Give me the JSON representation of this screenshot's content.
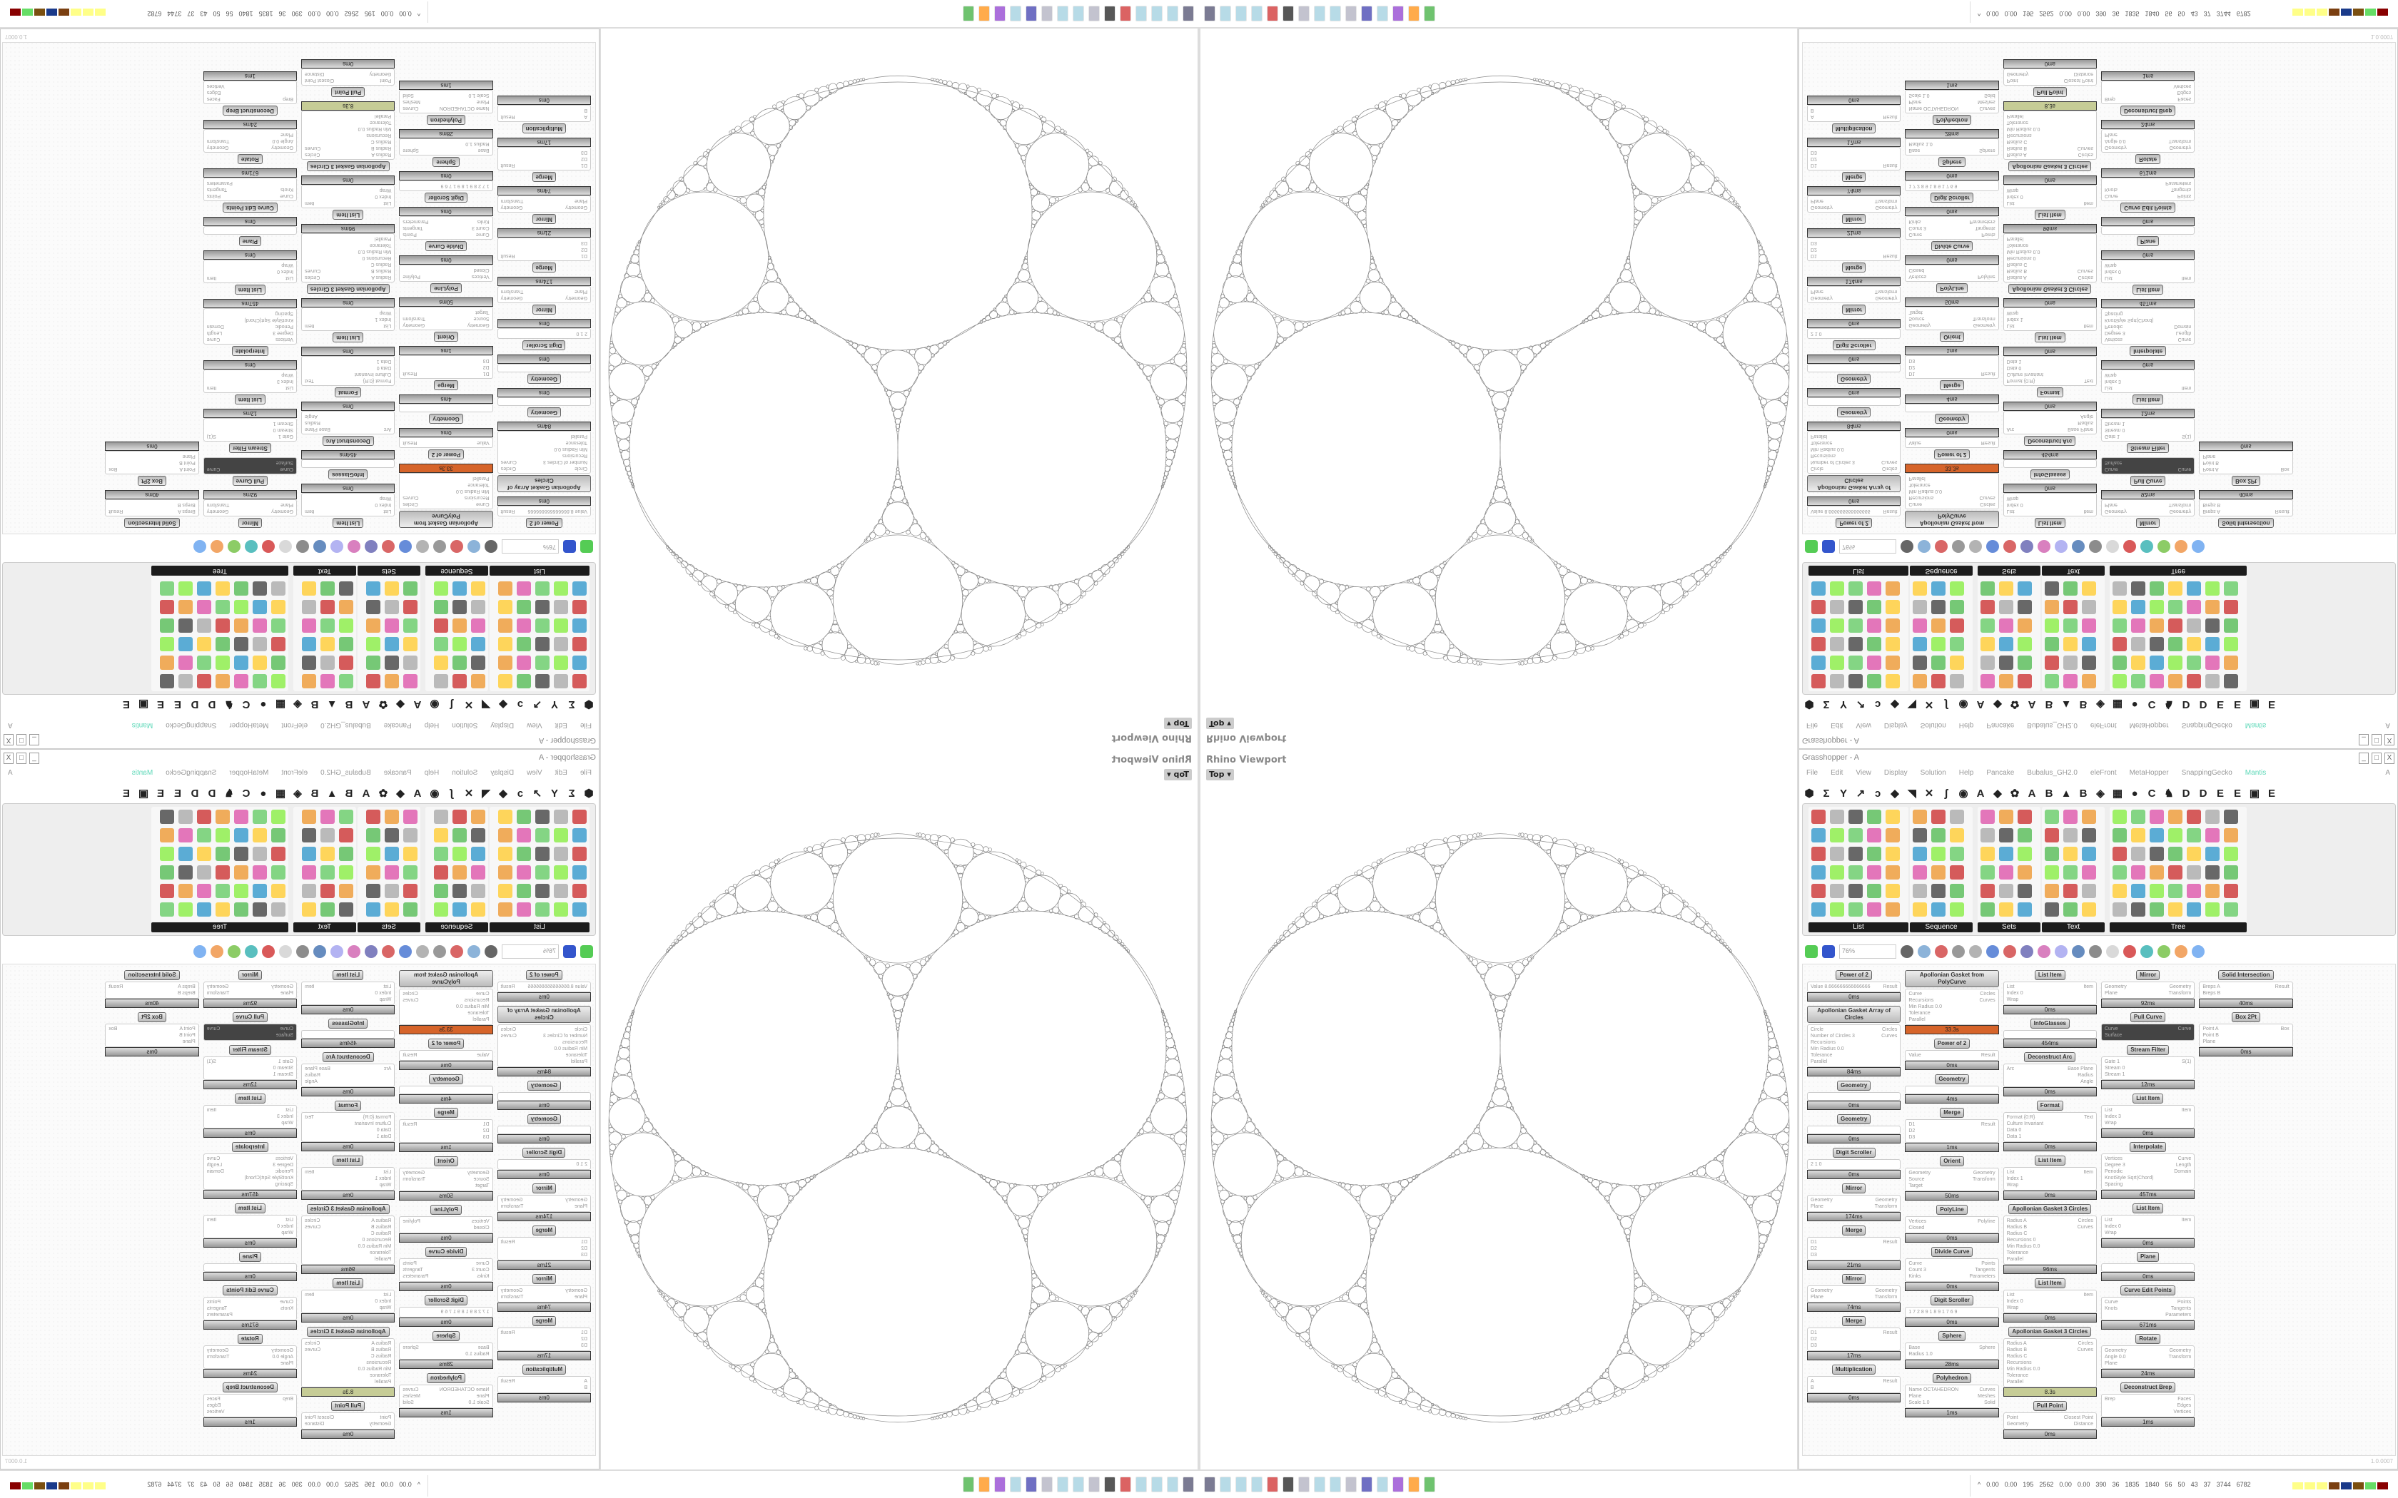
{
  "window": {
    "title": "Grasshopper - A",
    "buttons": [
      "_",
      "□",
      "X"
    ]
  },
  "menu": {
    "items": [
      "File",
      "Edit",
      "View",
      "Display",
      "Solution",
      "Help",
      "Pancake",
      "Bubalus_GH2.0",
      "eleFront",
      "MetaHopper",
      "SnappingGecko",
      "Mantis"
    ],
    "right": "A"
  },
  "tabs": [
    "⬢",
    "Σ",
    "Y",
    "↗",
    "ↄ",
    "◆",
    "◥",
    "✕",
    "ʃ",
    "◉",
    "A",
    "◆",
    "✿",
    "A",
    "B",
    "▲",
    "B",
    "◈",
    "▦",
    "●",
    "C",
    "♞",
    "D",
    "D",
    "E",
    "E",
    "▣",
    "E"
  ],
  "ribbon": {
    "groups": [
      "List",
      "Sequence",
      "Sets",
      "Text",
      "Tree"
    ]
  },
  "toolbar": {
    "zoom": "76%"
  },
  "viewport": {
    "label": "Rhino Viewport",
    "view": "Top"
  },
  "status": {
    "version": "1.0.0007"
  },
  "tray": {
    "values": [
      "0.00",
      "0.00",
      "195",
      "2562",
      "0.00",
      "0.00",
      "390",
      "36",
      "1835",
      "1840",
      "56",
      "50",
      "43",
      "37",
      "3744",
      "6782"
    ],
    "bar_colors": [
      "#ffff88",
      "#ffff88",
      "#ffff88",
      "#7a3f10",
      "#1a3a8a",
      "#7a4f10",
      "#66dd66",
      "#880000"
    ]
  },
  "components": [
    {
      "title": "Power of 2",
      "in": [
        "Value 8.666666666666666"
      ],
      "out": [
        "Result"
      ],
      "time": "0ms"
    },
    {
      "title": "Apollonian Gasket Array of Circles",
      "in": [
        "Circle",
        "Number of Circles 3",
        "Recursions",
        "Min Radius 0.0",
        "Tolerance",
        "Parallel"
      ],
      "out": [
        "Circles",
        "Curves"
      ],
      "time": "84ms"
    },
    {
      "title": "Geometry",
      "in": [],
      "out": [],
      "time": "0ms"
    },
    {
      "title": "Geometry",
      "in": [],
      "out": [],
      "time": "0ms"
    },
    {
      "title": "Digit Scroller",
      "in": [
        "2 1 0"
      ],
      "out": [],
      "time": "0ms"
    },
    {
      "title": "Mirror",
      "in": [
        "Geometry",
        "Plane"
      ],
      "out": [
        "Geometry",
        "Transform"
      ],
      "time": "174ms"
    },
    {
      "title": "Merge",
      "in": [
        "D1",
        "D2",
        "D3"
      ],
      "out": [
        "Result"
      ],
      "time": "21ms"
    },
    {
      "title": "Mirror",
      "in": [
        "Geometry",
        "Plane"
      ],
      "out": [
        "Geometry",
        "Transform"
      ],
      "time": "74ms"
    },
    {
      "title": "Merge",
      "in": [
        "D1",
        "D2",
        "D3"
      ],
      "out": [
        "Result"
      ],
      "time": "17ms"
    },
    {
      "title": "Multiplication",
      "in": [
        "A",
        "B"
      ],
      "out": [
        "Result"
      ],
      "time": "0ms"
    },
    {
      "title": "Apollonian Gasket from PolyCurve",
      "in": [
        "Curve",
        "Recursions",
        "Min Radius 0.0",
        "Tolerance",
        "Parallel"
      ],
      "out": [
        "Circles",
        "Curves"
      ],
      "time": "33.3s",
      "state": "orange"
    },
    {
      "title": "Power of 2",
      "in": [
        "Value"
      ],
      "out": [
        "Result"
      ],
      "time": "0ms"
    },
    {
      "title": "Geometry",
      "in": [],
      "out": [],
      "time": "4ms"
    },
    {
      "title": "Merge",
      "in": [
        "D1",
        "D2",
        "D3"
      ],
      "out": [
        "Result"
      ],
      "time": "1ms"
    },
    {
      "title": "Orient",
      "in": [
        "Geometry",
        "Source",
        "Target"
      ],
      "out": [
        "Geometry",
        "Transform"
      ],
      "time": "50ms"
    },
    {
      "title": "PolyLine",
      "in": [
        "Vertices",
        "Closed"
      ],
      "out": [
        "Polyline"
      ],
      "time": "0ms"
    },
    {
      "title": "Divide Curve",
      "in": [
        "Curve",
        "Count 3",
        "Kinks"
      ],
      "out": [
        "Points",
        "Tangents",
        "Parameters"
      ],
      "time": "0ms"
    },
    {
      "title": "Digit Scroller",
      "in": [
        "1 7 2 8 9 1 8 9 1 7 6 9"
      ],
      "out": [],
      "time": "0ms"
    },
    {
      "title": "Sphere",
      "in": [
        "Base",
        "Radius 1.0"
      ],
      "out": [
        "Sphere"
      ],
      "time": "28ms"
    },
    {
      "title": "Polyhedron",
      "in": [
        "Name OCTAHEDRON",
        "Plane",
        "Scale 1.0"
      ],
      "out": [
        "Curves",
        "Meshes",
        "Solid"
      ],
      "time": "1ms"
    },
    {
      "title": "List Item",
      "in": [
        "List",
        "Index 0",
        "Wrap"
      ],
      "out": [
        "Item"
      ],
      "time": "0ms"
    },
    {
      "title": "InfoGlasses",
      "in": [],
      "out": [],
      "time": "454ms"
    },
    {
      "title": "Deconstruct Arc",
      "in": [
        "Arc"
      ],
      "out": [
        "Base Plane",
        "Radius",
        "Angle"
      ],
      "time": "0ms"
    },
    {
      "title": "Format",
      "in": [
        "Format {0:R}",
        "Culture Invariant",
        "Data 0",
        "Data 1"
      ],
      "out": [
        "Text"
      ],
      "time": "0ms"
    },
    {
      "title": "List Item",
      "in": [
        "List",
        "Index 1",
        "Wrap"
      ],
      "out": [
        "Item"
      ],
      "time": "0ms"
    },
    {
      "title": "Apollonian Gasket 3 Circles",
      "in": [
        "Radius A",
        "Radius B",
        "Radius C",
        "Recursions 0",
        "Min Radius 0.0",
        "Tolerance",
        "Parallel"
      ],
      "out": [
        "Circles",
        "Curves"
      ],
      "time": "96ms"
    },
    {
      "title": "List Item",
      "in": [
        "List",
        "Index 0",
        "Wrap"
      ],
      "out": [
        "Item"
      ],
      "time": "0ms"
    },
    {
      "title": "Apollonian Gasket 3 Circles",
      "in": [
        "Radius A",
        "Radius B",
        "Radius C",
        "Recursions",
        "Min Radius 0.0",
        "Tolerance",
        "Parallel"
      ],
      "out": [
        "Circles",
        "Curves"
      ],
      "time": "8.3s",
      "state": "olive"
    },
    {
      "title": "Pull Point",
      "in": [
        "Point",
        "Geometry"
      ],
      "out": [
        "Closest Point",
        "Distance"
      ],
      "time": "0ms"
    },
    {
      "title": "Mirror",
      "in": [
        "Geometry",
        "Plane"
      ],
      "out": [
        "Geometry",
        "Transform"
      ],
      "time": "92ms"
    },
    {
      "title": "Pull Curve",
      "in": [
        "Curve",
        "Surface"
      ],
      "out": [
        "Curve"
      ],
      "time": "",
      "state": "dark"
    },
    {
      "title": "Stream Filter",
      "in": [
        "Gate 1",
        "Stream 0",
        "Stream 1"
      ],
      "out": [
        "S(1)"
      ],
      "time": "12ms"
    },
    {
      "title": "List Item",
      "in": [
        "List",
        "Index 3",
        "Wrap"
      ],
      "out": [
        "Item"
      ],
      "time": "0ms"
    },
    {
      "title": "Interpolate",
      "in": [
        "Vertices",
        "Degree 3",
        "Periodic",
        "KnotStyle Sqrt(Chord) Spacing"
      ],
      "out": [
        "Curve",
        "Length",
        "Domain"
      ],
      "time": "457ms"
    },
    {
      "title": "List Item",
      "in": [
        "List",
        "Index 0",
        "Wrap"
      ],
      "out": [
        "Item"
      ],
      "time": "0ms"
    },
    {
      "title": "Plane",
      "in": [],
      "out": [],
      "time": "0ms"
    },
    {
      "title": "Curve Edit Points",
      "in": [
        "Curve",
        "Knots"
      ],
      "out": [
        "Points",
        "Tangents",
        "Parameters"
      ],
      "time": "671ms"
    },
    {
      "title": "Rotate",
      "in": [
        "Geometry",
        "Angle 0.0",
        "Plane"
      ],
      "out": [
        "Geometry",
        "Transform"
      ],
      "time": "24ms"
    },
    {
      "title": "Deconstruct Brep",
      "in": [
        "Brep"
      ],
      "out": [
        "Faces",
        "Edges",
        "Vertices"
      ],
      "time": "1ms"
    },
    {
      "title": "Solid Intersection",
      "in": [
        "Breps A",
        "Breps B"
      ],
      "out": [
        "Result"
      ],
      "time": "40ms"
    },
    {
      "title": "Box 2Pt",
      "in": [
        "Point A",
        "Point B",
        "Plane"
      ],
      "out": [
        "Box"
      ],
      "time": "0ms"
    }
  ]
}
